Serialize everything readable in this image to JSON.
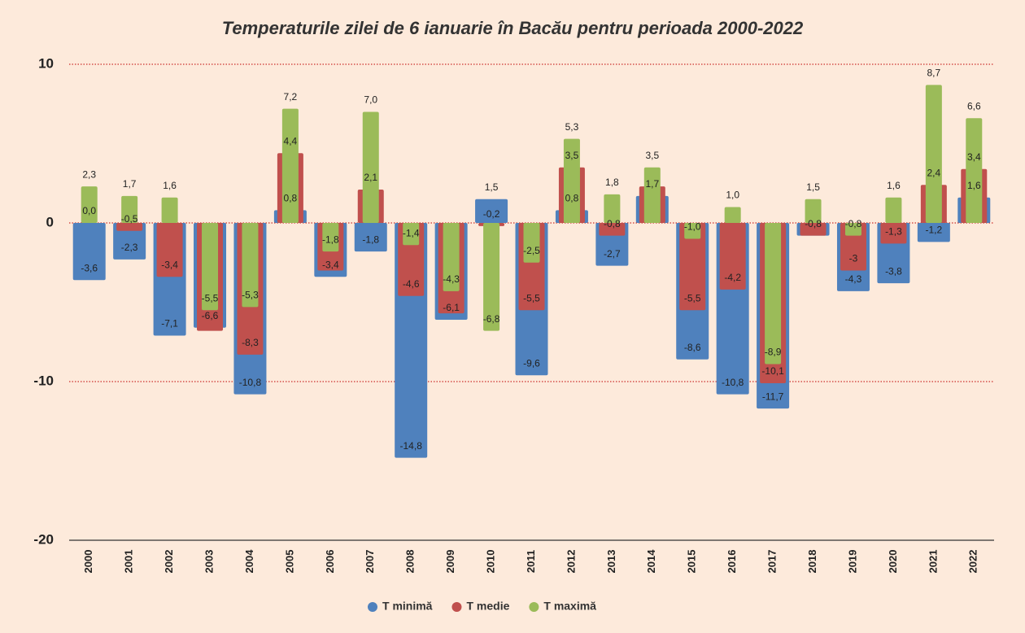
{
  "chart_data": {
    "type": "bar",
    "title": "Temperaturile zilei de 6 ianuarie în Bacău pentru perioada 2000-2022",
    "categories": [
      "2000",
      "2001",
      "2002",
      "2003",
      "2004",
      "2005",
      "2006",
      "2007",
      "2008",
      "2009",
      "2010",
      "2011",
      "2012",
      "2013",
      "2014",
      "2015",
      "2016",
      "2017",
      "2018",
      "2019",
      "2020",
      "2021",
      "2022"
    ],
    "series": [
      {
        "name": "T minimă",
        "color": "#4f81bd",
        "values": [
          -3.6,
          -2.3,
          -7.1,
          -6.6,
          -10.8,
          0.8,
          -3.4,
          -1.8,
          -14.8,
          -6.1,
          1.5,
          -9.6,
          0.8,
          -2.7,
          1.7,
          -8.6,
          -10.8,
          -11.7,
          -0.8,
          -4.3,
          -3.8,
          -1.2,
          1.6
        ],
        "value_labels": [
          "-3,6",
          "-2,3",
          "-7,1",
          "-6,6",
          "-10,8",
          "0,8",
          "-3,4",
          "-1,8",
          "-14,8",
          "-6,1",
          "1,5",
          "-9,6",
          "0,8",
          "-2,7",
          "1,7",
          "-8,6",
          "-10,8",
          "-11,7",
          "-0,8",
          "-4,3",
          "-3,8",
          "-1,2",
          "1,6"
        ]
      },
      {
        "name": "T medie",
        "color": "#c0504d",
        "values": [
          0.0,
          -0.5,
          -3.4,
          -6.8,
          -8.3,
          4.4,
          -3.0,
          2.1,
          -4.6,
          -5.7,
          -0.2,
          -5.5,
          3.5,
          -0.8,
          2.3,
          -5.5,
          -4.2,
          -10.1,
          -0.8,
          -3,
          -1.3,
          2.4,
          3.4
        ],
        "value_labels": [
          "0,0",
          "-0,5",
          "-3,4",
          null,
          "-8,3",
          "4,4",
          null,
          "2,1",
          "-4,6",
          null,
          "-0,2",
          "-5,5",
          "3,5",
          "-0,8",
          null,
          "-5,5",
          "-4,2",
          "-10,1",
          null,
          "-3",
          "-1,3",
          "2,4",
          "3,4"
        ]
      },
      {
        "name": "T maximă",
        "color": "#9bbb59",
        "values": [
          2.3,
          1.7,
          1.6,
          -5.5,
          -5.3,
          7.2,
          -1.8,
          7.0,
          -1.4,
          -4.3,
          -6.8,
          -2.5,
          5.3,
          1.8,
          3.5,
          -1.0,
          1.0,
          -8.9,
          1.5,
          -0.8,
          1.6,
          8.7,
          6.6
        ],
        "value_labels": [
          "2,3",
          "1,7",
          "1,6",
          "-5,5",
          "-5,3",
          "7,2",
          "-1,8",
          "7,0",
          "-1,4",
          "-4,3",
          "-6,8",
          "-2,5",
          "5,3",
          "1,8",
          "3,5",
          "-1,0",
          "1,0",
          "-8,9",
          "1,5",
          "-0,8",
          "1,6",
          "8,7",
          "6,6"
        ]
      }
    ],
    "ylim": [
      -20,
      10
    ],
    "yticks": [
      -20,
      -10,
      0,
      10
    ],
    "grid": true
  }
}
